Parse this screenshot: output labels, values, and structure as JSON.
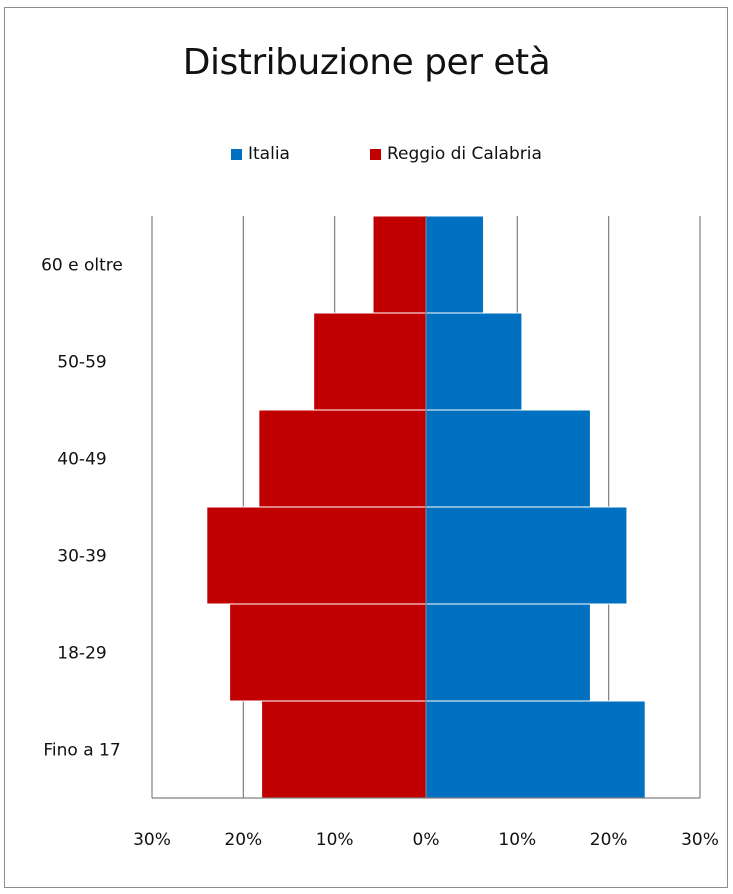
{
  "chart_data": {
    "type": "bar",
    "orientation": "horizontal",
    "title": "Distribuzione per età",
    "categories": [
      "Fino a 17",
      "18-29",
      "30-39",
      "40-49",
      "50-59",
      "60 e oltre"
    ],
    "series": [
      {
        "name": "Italia",
        "color": "#0070c0",
        "values": [
          24,
          18,
          22,
          18,
          10.5,
          6.3
        ]
      },
      {
        "name": "Reggio di Calabria",
        "color": "#c00000",
        "values": [
          18,
          21.5,
          24,
          18.3,
          12.3,
          5.8
        ]
      }
    ],
    "x_tick_labels": [
      "30%",
      "20%",
      "10%",
      "0%",
      "10%",
      "20%",
      "30%"
    ],
    "xlim": [
      -30,
      30
    ],
    "grid": true,
    "legend_position": "top"
  }
}
